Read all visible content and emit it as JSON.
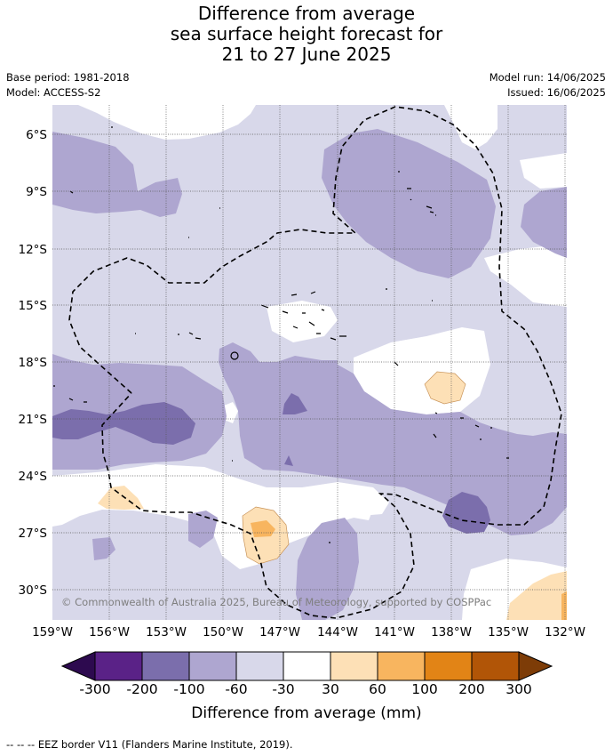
{
  "title": {
    "line1": "Difference from average",
    "line2": "sea surface height forecast for",
    "line3": "21 to 27 June 2025"
  },
  "meta": {
    "base_period": "Base period: 1981-2018",
    "model": "Model: ACCESS-S2",
    "model_run": "Model run: 14/06/2025",
    "issued": "Issued: 16/06/2025"
  },
  "map": {
    "lon_ticks": [
      "159°W",
      "156°W",
      "153°W",
      "150°W",
      "147°W",
      "144°W",
      "141°W",
      "138°W",
      "135°W",
      "132°W"
    ],
    "lat_ticks": [
      "6°S",
      "9°S",
      "12°S",
      "15°S",
      "18°S",
      "21°S",
      "24°S",
      "27°S",
      "30°S"
    ],
    "lon_range": [
      -159,
      -132
    ],
    "lat_range": [
      -4.5,
      -31.5
    ],
    "gridlines": true,
    "copyright": "© Commonwealth of Australia 2025, Bureau of Meteorology, supported by COSPPac"
  },
  "colorbar": {
    "title": "Difference from average (mm)",
    "labels": [
      "-300",
      "-200",
      "-100",
      "-60",
      "-30",
      "30",
      "60",
      "100",
      "200",
      "300"
    ],
    "colors": [
      "#2d0a4f",
      "#5a2287",
      "#7b6eac",
      "#aea6d0",
      "#d8d8ea",
      "#ffffff",
      "#fde0b6",
      "#f8b55f",
      "#e28416",
      "#b15507",
      "#7d3c07"
    ]
  },
  "footer": "--  --  -- EEZ border V11 (Flanders Marine Institute, 2019)."
}
